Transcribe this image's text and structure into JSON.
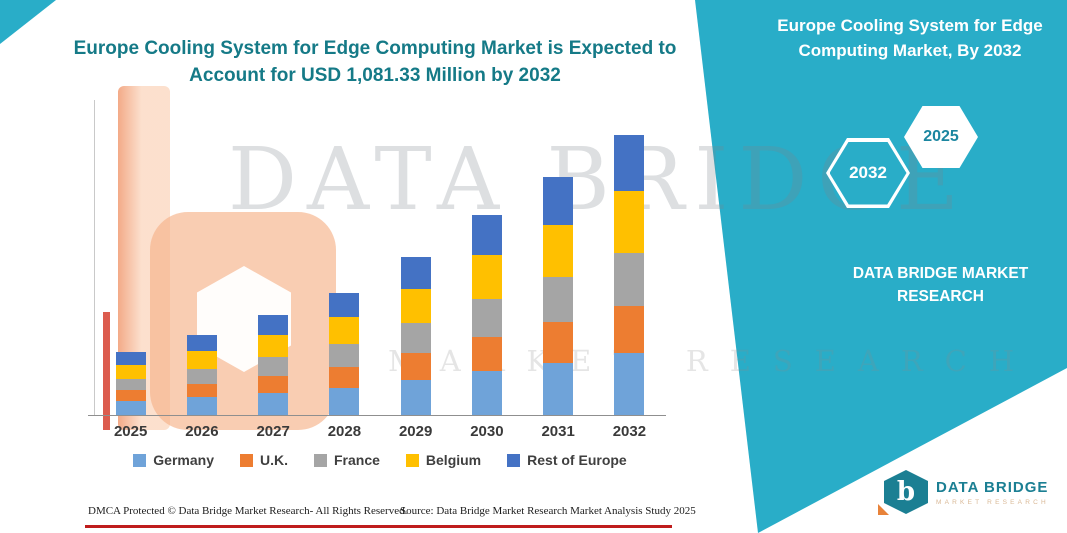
{
  "header": {
    "left_title": "Europe Cooling System for Edge Computing Market is Expected to Account for USD 1,081.33 Million by 2032"
  },
  "panel": {
    "title": "Europe Cooling System for Edge Computing Market, By 2032",
    "hexagons": {
      "back_year": "2032",
      "front_year": "2025"
    },
    "brand_text": "DATA BRIDGE MARKET RESEARCH",
    "color": "#29adc8"
  },
  "watermark": {
    "line1": "DATA BRIDGE",
    "line2": "MARKET RESEARCH"
  },
  "chart_data": {
    "type": "bar",
    "stacked": true,
    "title": "Europe Cooling System for Edge Computing Market is Expected to Account for USD 1,081.33 Million by 2032",
    "unit": "USD Million",
    "categories": [
      "2025",
      "2026",
      "2027",
      "2028",
      "2029",
      "2030",
      "2031",
      "2032"
    ],
    "series": [
      {
        "name": "Germany",
        "color": "#6FA3D9",
        "values": [
          54,
          68,
          85,
          104,
          134,
          170,
          202,
          238
        ]
      },
      {
        "name": "U.K.",
        "color": "#ED7D31",
        "values": [
          41,
          52,
          65,
          80,
          104,
          131,
          156,
          184
        ]
      },
      {
        "name": "France",
        "color": "#A5A5A5",
        "values": [
          46,
          59,
          73,
          89,
          116,
          147,
          175,
          205
        ]
      },
      {
        "name": "Belgium",
        "color": "#FFC000",
        "values": [
          53,
          68,
          85,
          104,
          134,
          170,
          202,
          238
        ]
      },
      {
        "name": "Rest of Europe",
        "color": "#4472C4",
        "values": [
          49,
          62,
          78,
          94,
          122,
          154,
          184,
          216.33
        ]
      }
    ],
    "total_2032": 1081.33,
    "xlabel": "",
    "ylabel": "",
    "ylim": [
      0,
      1100
    ],
    "grid": false,
    "legend_position": "bottom"
  },
  "footer": {
    "dmca": "DMCA Protected © Data Bridge Market Research-  All Rights Reserved.",
    "source": "Source: Data Bridge Market Research  Market Analysis Study 2025"
  },
  "logo": {
    "letter": "b",
    "name": "DATA BRIDGE",
    "tagline": "MARKET RESEARCH"
  }
}
